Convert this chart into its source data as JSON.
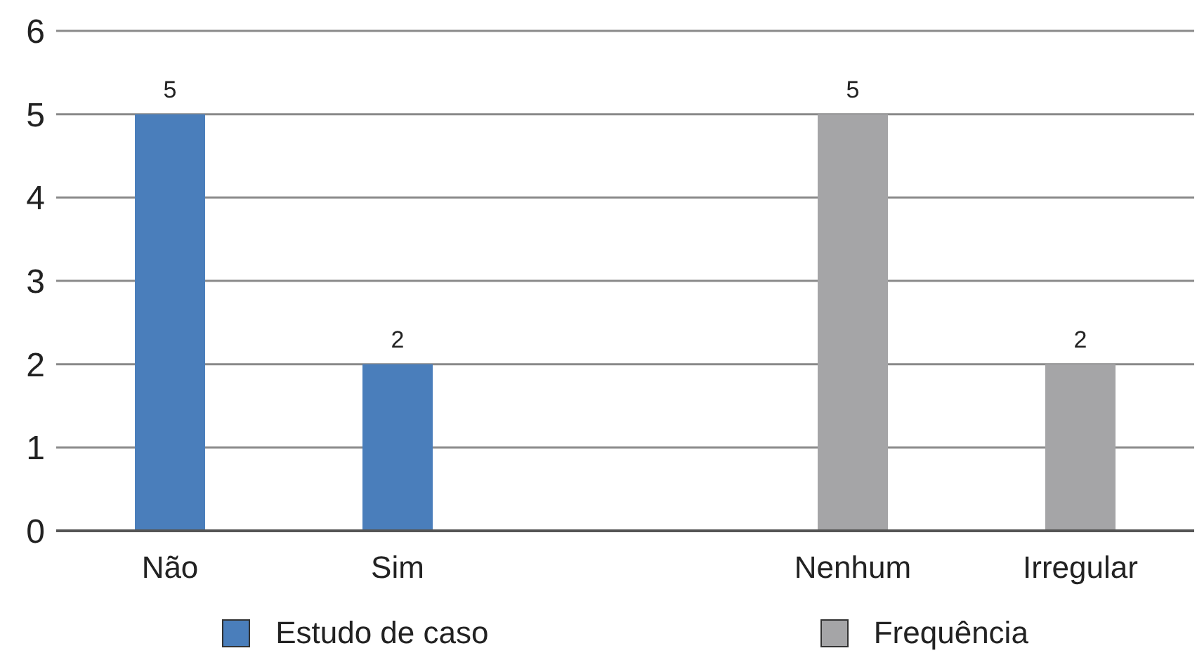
{
  "chart_data": {
    "type": "bar",
    "categories": [
      "Não",
      "Sim",
      null,
      "Nenhum",
      "Irregular"
    ],
    "series": [
      {
        "name": "Estudo de caso",
        "color": "#4a7ebb",
        "values": [
          5,
          2,
          null,
          null,
          null
        ]
      },
      {
        "name": "Frequência",
        "color": "#a5a5a7",
        "values": [
          null,
          null,
          null,
          5,
          2
        ]
      }
    ],
    "ylim": [
      0,
      6
    ],
    "yticks": [
      0,
      1,
      2,
      3,
      4,
      5,
      6
    ],
    "grid": "y",
    "legend": "bottom",
    "data_labels": true
  }
}
